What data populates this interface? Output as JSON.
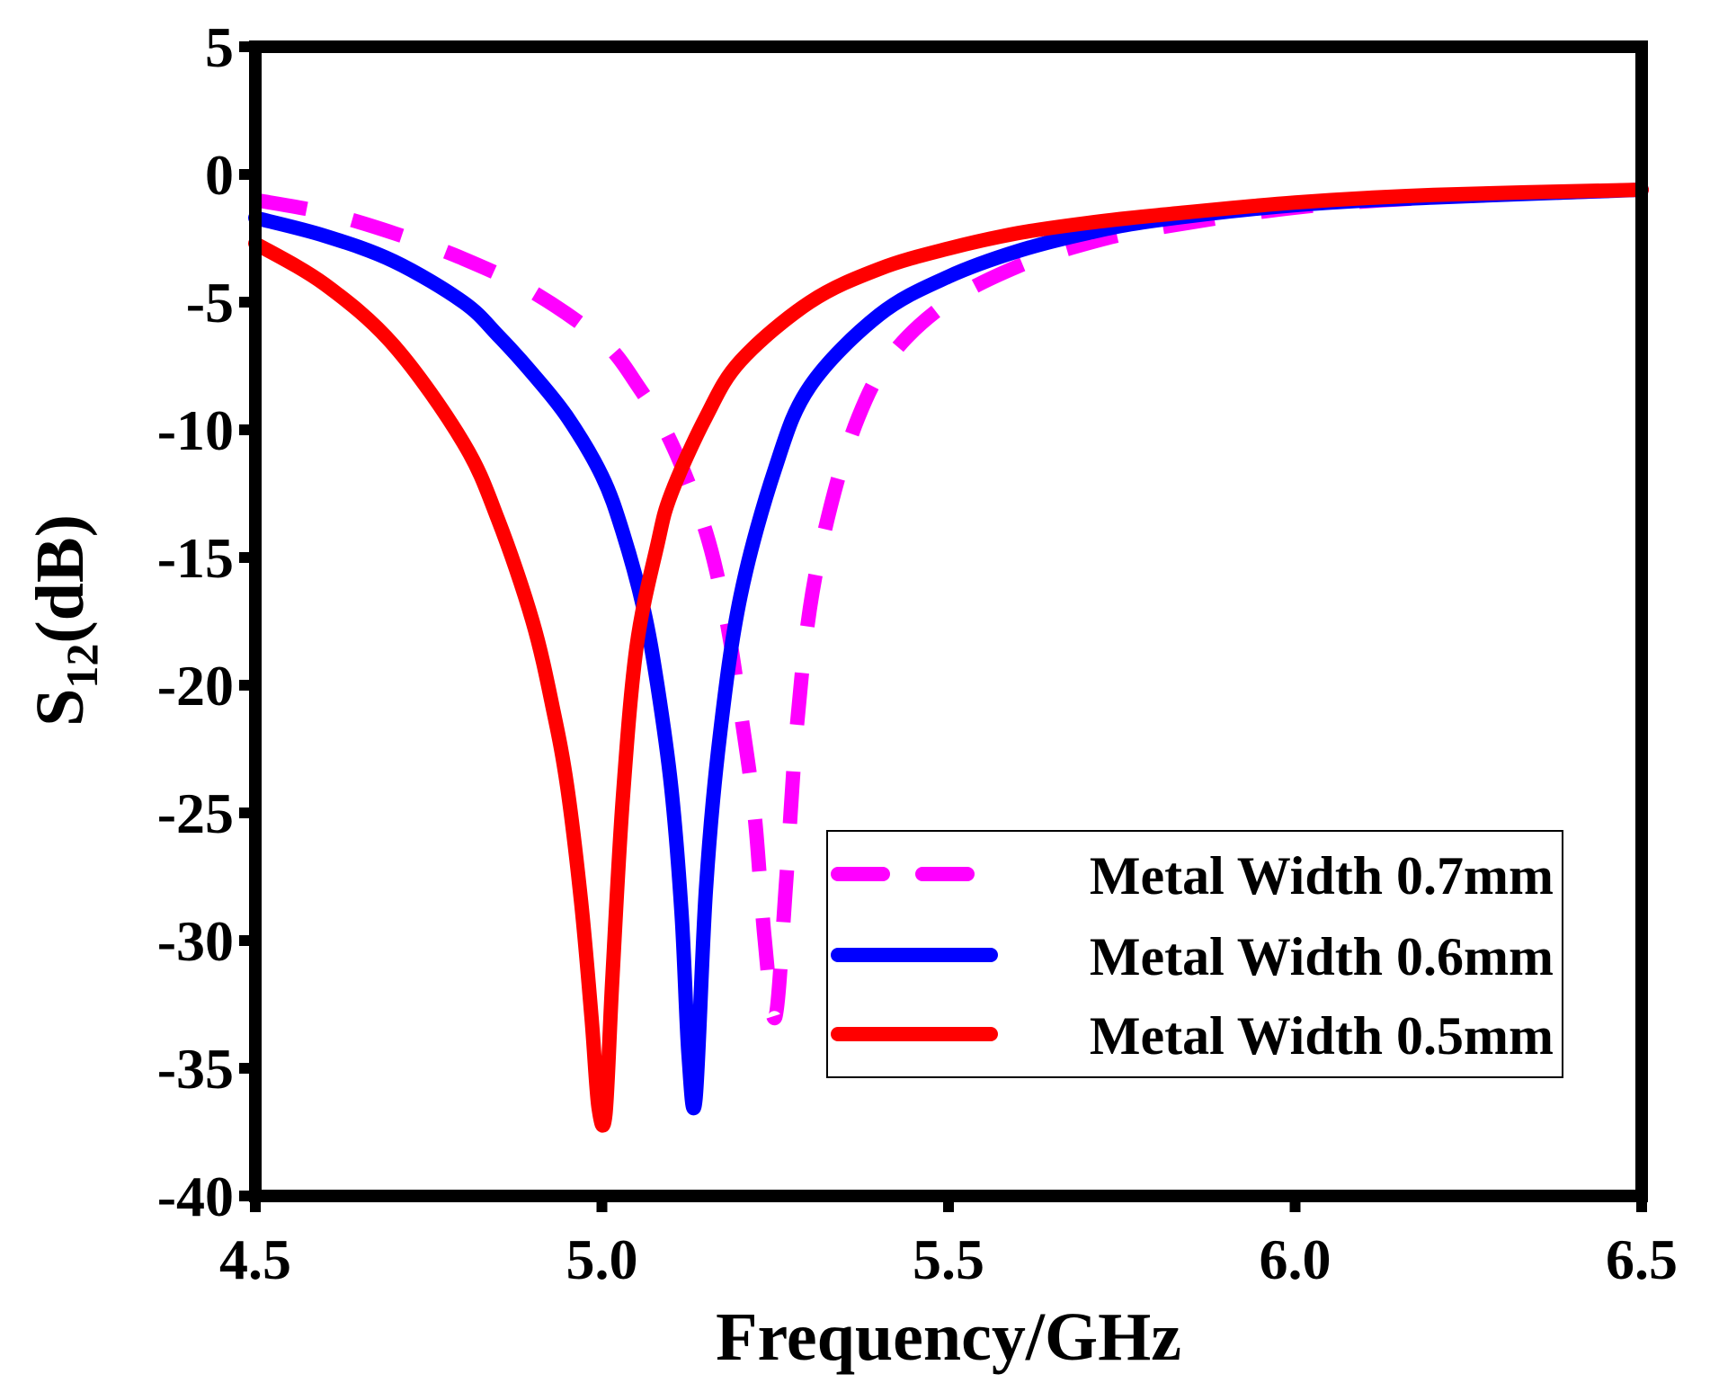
{
  "chart_data": {
    "type": "line",
    "title": "",
    "xlabel": "Frequency/GHz",
    "ylabel": {
      "base": "S",
      "sub": "12",
      "rest": "(dB)"
    },
    "xlim": [
      4.5,
      6.5
    ],
    "ylim": [
      -40,
      5
    ],
    "xticks": [
      4.5,
      5.0,
      5.5,
      6.0,
      6.5
    ],
    "xtick_labels": [
      "4.5",
      "5.0",
      "5.5",
      "6.0",
      "6.5"
    ],
    "yticks": [
      5,
      0,
      -5,
      -10,
      -15,
      -20,
      -25,
      -30,
      -35,
      -40
    ],
    "ytick_labels": [
      "5",
      "0",
      "-5",
      "-10",
      "-15",
      "-20",
      "-25",
      "-30",
      "-35",
      "-40"
    ],
    "grid": false,
    "legend_position": "bottom-right",
    "series": [
      {
        "name": "Metal Width 0.7mm",
        "color": "#ff00ff",
        "style": "dashed",
        "x": [
          4.5,
          4.6,
          4.7,
          4.8,
          4.9,
          5.0,
          5.05,
          5.1,
          5.15,
          5.18,
          5.2,
          5.22,
          5.235,
          5.25,
          5.265,
          5.28,
          5.3,
          5.33,
          5.37,
          5.42,
          5.5,
          5.6,
          5.7,
          5.8,
          6.0,
          6.2,
          6.5
        ],
        "values": [
          -1.0,
          -1.5,
          -2.3,
          -3.3,
          -4.6,
          -6.5,
          -8.2,
          -10.5,
          -14.0,
          -17.5,
          -21.0,
          -25.0,
          -30.0,
          -33.0,
          -28.0,
          -22.0,
          -17.0,
          -13.0,
          -9.5,
          -7.0,
          -5.0,
          -3.6,
          -2.7,
          -2.1,
          -1.3,
          -0.9,
          -0.6
        ]
      },
      {
        "name": "Metal Width 0.6mm",
        "color": "#0000ff",
        "style": "solid",
        "x": [
          4.5,
          4.6,
          4.7,
          4.8,
          4.85,
          4.9,
          4.95,
          5.0,
          5.03,
          5.06,
          5.08,
          5.1,
          5.115,
          5.125,
          5.135,
          5.15,
          5.17,
          5.2,
          5.25,
          5.3,
          5.4,
          5.5,
          5.6,
          5.7,
          5.8,
          6.0,
          6.2,
          6.5
        ],
        "values": [
          -1.7,
          -2.4,
          -3.4,
          -5.0,
          -6.3,
          -7.8,
          -9.5,
          -11.8,
          -14.0,
          -17.0,
          -20.0,
          -24.0,
          -29.0,
          -34.5,
          -36.2,
          -28.0,
          -22.0,
          -16.5,
          -11.5,
          -8.3,
          -5.5,
          -4.0,
          -3.0,
          -2.3,
          -1.8,
          -1.2,
          -0.9,
          -0.6
        ]
      },
      {
        "name": "Metal Width 0.5mm",
        "color": "#ff0000",
        "style": "solid",
        "x": [
          4.5,
          4.6,
          4.7,
          4.8,
          4.85,
          4.9,
          4.93,
          4.95,
          4.97,
          4.985,
          4.995,
          5.005,
          5.015,
          5.03,
          5.05,
          5.08,
          5.1,
          5.15,
          5.2,
          5.3,
          5.4,
          5.5,
          5.6,
          5.7,
          5.8,
          6.0,
          6.2,
          6.5
        ],
        "values": [
          -2.7,
          -4.3,
          -6.7,
          -10.5,
          -13.5,
          -17.5,
          -21.0,
          -24.0,
          -28.5,
          -33.0,
          -36.5,
          -36.8,
          -31.5,
          -24.5,
          -18.5,
          -14.5,
          -12.5,
          -9.5,
          -7.3,
          -5.0,
          -3.7,
          -2.9,
          -2.3,
          -1.9,
          -1.6,
          -1.1,
          -0.8,
          -0.6
        ]
      }
    ]
  }
}
